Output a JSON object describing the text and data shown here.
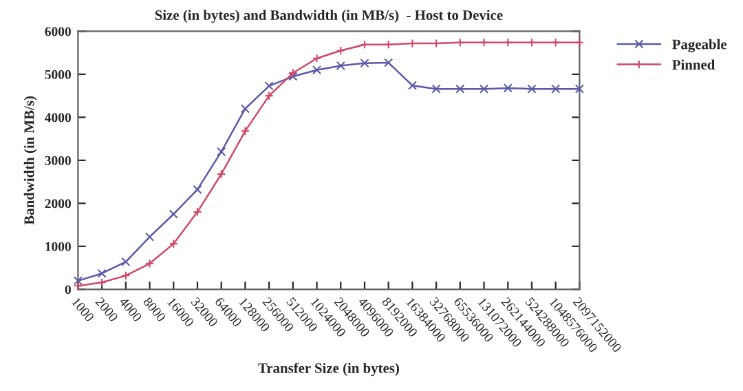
{
  "chart_data": {
    "type": "line",
    "title": "Size (in bytes) and Bandwidth (in MB/s)  - Host to Device",
    "xlabel": "Transfer Size (in bytes)",
    "ylabel": "Bandwidth (in MB/s)",
    "categories": [
      "1000",
      "2000",
      "4000",
      "8000",
      "16000",
      "32000",
      "64000",
      "128000",
      "256000",
      "512000",
      "1024000",
      "2048000",
      "4096000",
      "8192000",
      "16384000",
      "32768000",
      "65536000",
      "131072000",
      "262144000",
      "524288000",
      "1048576000",
      "2097152000"
    ],
    "series": [
      {
        "name": "Pageable",
        "color": "#5a5aa8",
        "marker": "cross",
        "values": [
          200,
          370,
          640,
          1220,
          1750,
          2320,
          3200,
          4200,
          4730,
          4950,
          5100,
          5200,
          5260,
          5270,
          4740,
          4660,
          4660,
          4660,
          4680,
          4660,
          4660,
          4660
        ]
      },
      {
        "name": "Pinned",
        "color": "#d04868",
        "marker": "plus",
        "values": [
          80,
          160,
          320,
          600,
          1060,
          1800,
          2680,
          3680,
          4500,
          5030,
          5370,
          5550,
          5690,
          5690,
          5720,
          5720,
          5740,
          5740,
          5740,
          5740,
          5740,
          5740
        ]
      }
    ],
    "ylim": [
      0,
      6000
    ],
    "yticks": [
      0,
      1000,
      2000,
      3000,
      4000,
      5000,
      6000
    ],
    "grid": false,
    "legend": "top right",
    "line_style": "solid"
  }
}
